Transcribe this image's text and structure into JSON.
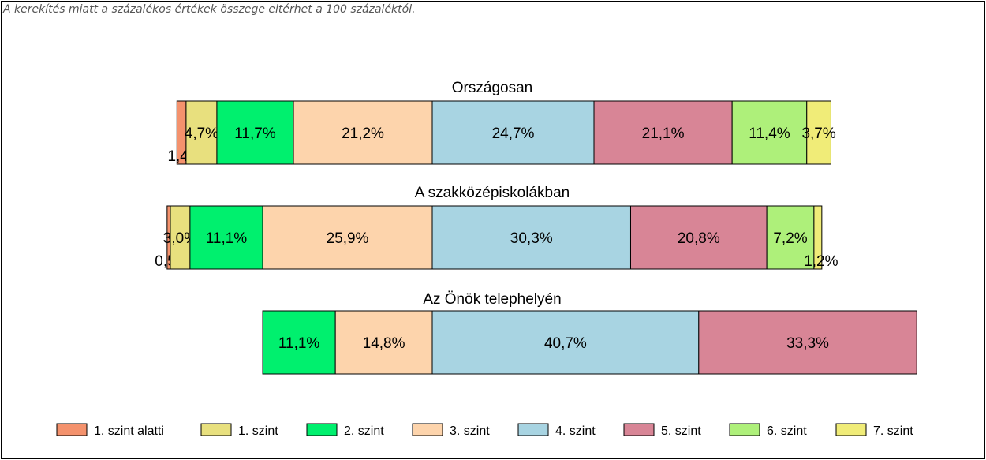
{
  "note": "A kerekítés miatt a  százalékos értékek összege eltérhet a 100 százaléktól.",
  "chart_data": {
    "type": "bar",
    "orientation": "horizontal",
    "stacked": true,
    "layout": "diverging",
    "grid": false,
    "legend_position": "bottom",
    "categories": [
      "Országosan",
      "A szakközépiskolákban",
      "Az Önök telephelyén"
    ],
    "series": [
      {
        "name": "1. szint alatti",
        "color": "#f4926d",
        "values": [
          1.4,
          0.5,
          0
        ]
      },
      {
        "name": "1. szint",
        "color": "#e8e07e",
        "values": [
          4.7,
          3.0,
          0
        ]
      },
      {
        "name": "2. szint",
        "color": "#00f06e",
        "values": [
          11.7,
          11.1,
          11.1
        ]
      },
      {
        "name": "3. szint",
        "color": "#fdd4ac",
        "values": [
          21.2,
          25.9,
          14.8
        ]
      },
      {
        "name": "4. szint",
        "color": "#a8d4e2",
        "values": [
          24.7,
          30.3,
          40.7
        ]
      },
      {
        "name": "5. szint",
        "color": "#d88596",
        "values": [
          21.1,
          20.8,
          33.3
        ]
      },
      {
        "name": "6. szint",
        "color": "#aef07a",
        "values": [
          11.4,
          7.2,
          0
        ]
      },
      {
        "name": "7. szint",
        "color": "#f0ec78",
        "values": [
          3.7,
          1.2,
          0
        ]
      }
    ],
    "labels": [
      [
        "1,4%",
        "4,7%",
        "11,7%",
        "21,2%",
        "24,7%",
        "21,1%",
        "11,4%",
        "3,7%"
      ],
      [
        "0,5%",
        "3,0%",
        "11,1%",
        "25,9%",
        "30,3%",
        "20,8%",
        "7,2%",
        "1,2%"
      ],
      [
        "",
        "",
        "11,1%",
        "14,8%",
        "40,7%",
        "33,3%",
        "",
        ""
      ]
    ]
  }
}
